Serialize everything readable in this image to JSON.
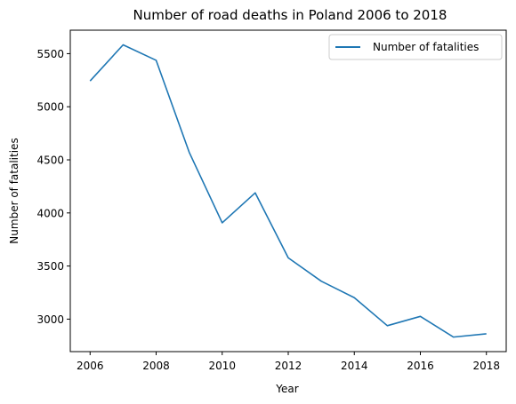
{
  "chart_data": {
    "type": "line",
    "title": "Number of road deaths in Poland 2006 to 2018",
    "xlabel": "Year",
    "ylabel": "Number of fatalities",
    "x": [
      2006,
      2007,
      2008,
      2009,
      2010,
      2011,
      2012,
      2013,
      2014,
      2015,
      2016,
      2017,
      2018
    ],
    "series": [
      {
        "name": "Number of fatalities",
        "values": [
          5243,
          5583,
          5437,
          4572,
          3907,
          4189,
          3577,
          3357,
          3202,
          2938,
          3026,
          2831,
          2862
        ],
        "color": "#1f77b4"
      }
    ],
    "xlim": [
      2005.4,
      2018.6
    ],
    "ylim": [
      2694,
      5721
    ],
    "xticks": [
      "2006",
      "2008",
      "2010",
      "2012",
      "2014",
      "2016",
      "2018"
    ],
    "yticks": [
      "3000",
      "3500",
      "4000",
      "4500",
      "5000",
      "5500"
    ],
    "legend": "top-right",
    "grid": false
  }
}
